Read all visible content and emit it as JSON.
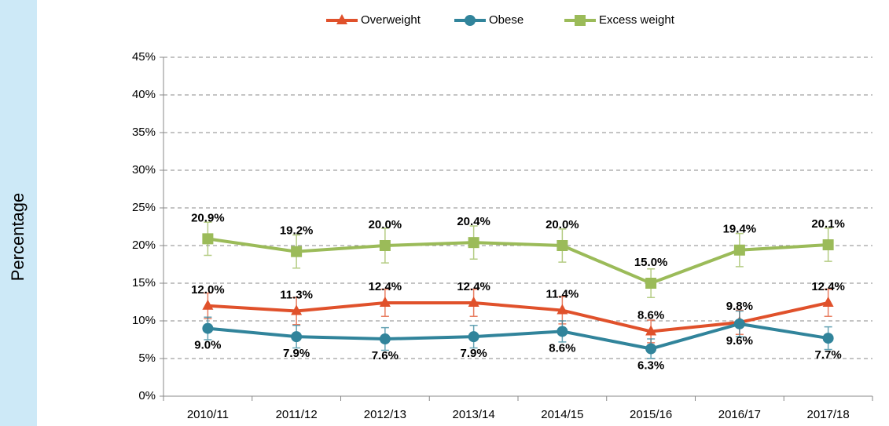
{
  "chart_data": {
    "type": "line",
    "y_label": "Percentage",
    "categories": [
      "2010/11",
      "2011/12",
      "2012/13",
      "2013/14",
      "2014/15",
      "2015/16",
      "2016/17",
      "2017/18"
    ],
    "series": [
      {
        "name": "Overweight",
        "color": "#e0512b",
        "marker": "triangle",
        "values": [
          12.0,
          11.3,
          12.4,
          12.4,
          11.4,
          8.6,
          9.8,
          12.4
        ],
        "value_labels": [
          "12.0%",
          "11.3%",
          "12.4%",
          "12.4%",
          "11.4%",
          "8.6%",
          "9.8%",
          "12.4%"
        ],
        "errors": [
          1.7,
          1.8,
          1.8,
          1.8,
          1.8,
          1.5,
          1.6,
          1.8
        ]
      },
      {
        "name": "Obese",
        "color": "#31849b",
        "marker": "circle",
        "values": [
          9.0,
          7.9,
          7.6,
          7.9,
          8.6,
          6.3,
          9.6,
          7.7
        ],
        "value_labels": [
          "9.0%",
          "7.9%",
          "7.6%",
          "7.9%",
          "8.6%",
          "6.3%",
          "9.6%",
          "7.7%"
        ],
        "errors": [
          1.5,
          1.5,
          1.5,
          1.5,
          1.4,
          1.3,
          1.7,
          1.5
        ]
      },
      {
        "name": "Excess weight",
        "color": "#9bbb59",
        "marker": "square",
        "values": [
          20.9,
          19.2,
          20.0,
          20.4,
          20.0,
          15.0,
          19.4,
          20.1
        ],
        "value_labels": [
          "20.9%",
          "19.2%",
          "20.0%",
          "20.4%",
          "20.0%",
          "15.0%",
          "19.4%",
          "20.1%"
        ],
        "errors": [
          2.2,
          2.2,
          2.3,
          2.2,
          2.2,
          1.9,
          2.2,
          2.2
        ]
      }
    ],
    "ylim": [
      0,
      45
    ],
    "yticks": [
      {
        "value": 0,
        "label": "0%"
      },
      {
        "value": 5,
        "label": "5%"
      },
      {
        "value": 10,
        "label": "10%"
      },
      {
        "value": 15,
        "label": "15%"
      },
      {
        "value": 20,
        "label": "20%"
      },
      {
        "value": 25,
        "label": "25%"
      },
      {
        "value": 30,
        "label": "30%"
      },
      {
        "value": 35,
        "label": "35%"
      },
      {
        "value": 40,
        "label": "40%"
      },
      {
        "value": 45,
        "label": "45%"
      }
    ],
    "grid": true,
    "legend": "top",
    "error_bars": true
  }
}
